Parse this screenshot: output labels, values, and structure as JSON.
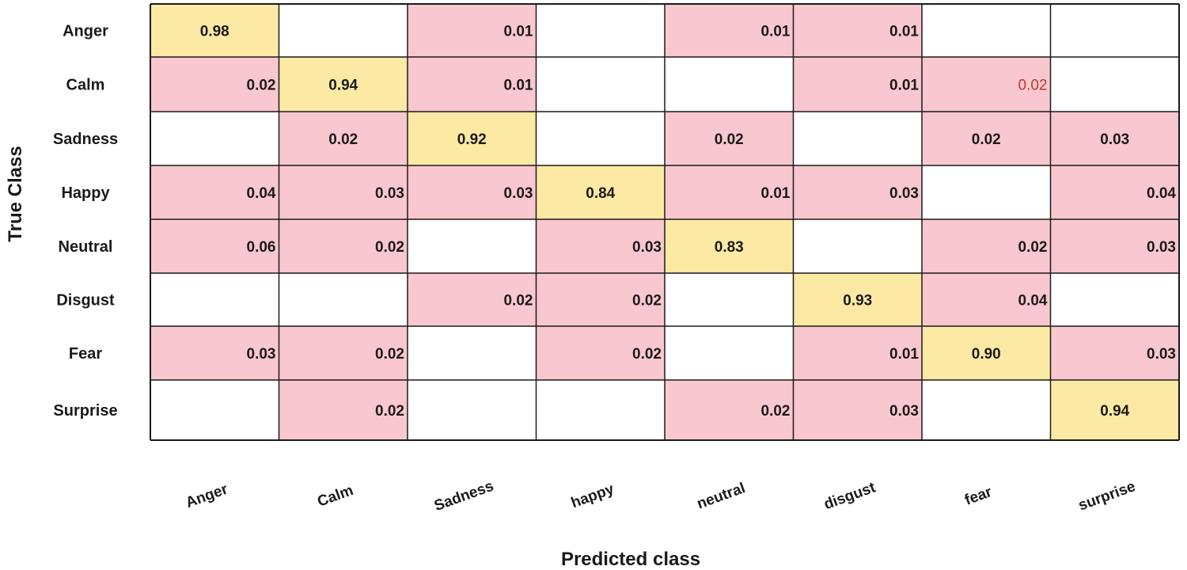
{
  "chart_data": {
    "type": "heatmap",
    "title": "",
    "xlabel": "Predicted class",
    "ylabel": "True Class",
    "rows": [
      "Anger",
      "Calm",
      "Sadness",
      "Happy",
      "Neutral",
      "Disgust",
      "Fear",
      "Surprise"
    ],
    "columns": [
      "Anger",
      "Calm",
      "Sadness",
      "happy",
      "neutral",
      "disgust",
      "fear",
      "surprise"
    ],
    "values": [
      [
        "0.98",
        null,
        "0.01",
        null,
        "0.01",
        "0.01",
        null,
        null
      ],
      [
        "0.02",
        "0.94",
        "0.01",
        null,
        null,
        "0.01",
        "0.02",
        null
      ],
      [
        null,
        "0.02",
        "0.92",
        null,
        "0.02",
        null,
        "0.02",
        "0.03"
      ],
      [
        "0.04",
        "0.03",
        "0.03",
        "0.84",
        "0.01",
        "0.03",
        null,
        "0.04"
      ],
      [
        "0.06",
        "0.02",
        null,
        "0.03",
        "0.83",
        null,
        "0.02",
        "0.03"
      ],
      [
        null,
        null,
        "0.02",
        "0.02",
        null,
        "0.93",
        "0.04",
        null
      ],
      [
        "0.03",
        "0.02",
        null,
        "0.02",
        null,
        "0.01",
        "0.90",
        "0.03"
      ],
      [
        null,
        "0.02",
        null,
        null,
        "0.02",
        "0.03",
        null,
        "0.94"
      ]
    ],
    "label_align": [
      [
        "center",
        null,
        "right",
        null,
        "right",
        "right",
        null,
        null
      ],
      [
        "right",
        "center",
        "right",
        null,
        null,
        "right",
        "right",
        null
      ],
      [
        null,
        "center",
        "center",
        null,
        "center",
        null,
        "center",
        "center"
      ],
      [
        "right",
        "right",
        "right",
        "center",
        "right",
        "right",
        null,
        "right"
      ],
      [
        "right",
        "right",
        null,
        "right",
        "center",
        null,
        "right",
        "right"
      ],
      [
        null,
        null,
        "right",
        "right",
        null,
        "center",
        "right",
        null
      ],
      [
        "right",
        "right",
        null,
        "right",
        null,
        "right",
        "center",
        "right"
      ],
      [
        null,
        "right",
        null,
        null,
        "right",
        "right",
        null,
        "center"
      ]
    ],
    "plain_labels": [
      [
        1,
        6
      ]
    ],
    "colors": {
      "diagonal": "#fce9a4",
      "off_diagonal": "#f9c7cf",
      "empty": "#ffffff",
      "grid": "#1a1a1a"
    }
  }
}
